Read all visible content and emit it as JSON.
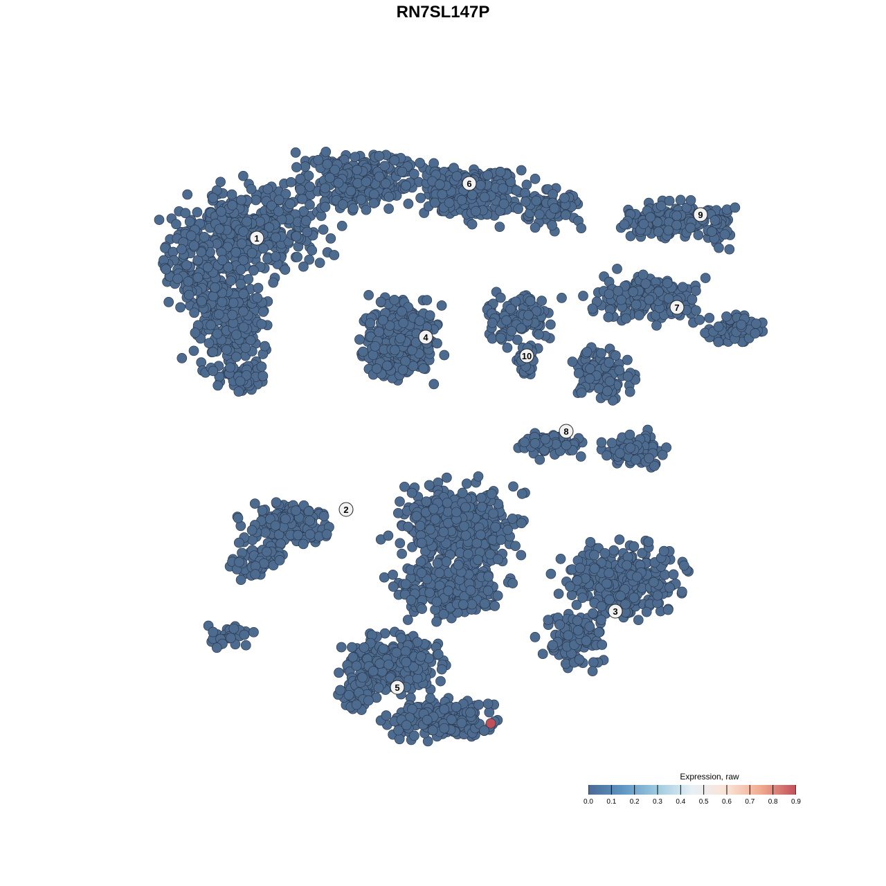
{
  "chart_data": {
    "type": "scatter",
    "title": "RN7SL147P",
    "xlabel": "",
    "ylabel": "",
    "grid": false,
    "axes_visible": false,
    "point_color_default": "#4d6a8f",
    "point_edge_color": "#2b3a4f",
    "clusters": [
      {
        "label": "1",
        "center": [
          -26.9,
          29.6
        ]
      },
      {
        "label": "2",
        "center": [
          -14.0,
          -9.6
        ]
      },
      {
        "label": "3",
        "center": [
          24.9,
          -24.3
        ]
      },
      {
        "label": "4",
        "center": [
          -2.5,
          15.3
        ]
      },
      {
        "label": "5",
        "center": [
          -6.6,
          -35.3
        ]
      },
      {
        "label": "6",
        "center": [
          3.8,
          37.5
        ]
      },
      {
        "label": "7",
        "center": [
          33.8,
          19.6
        ]
      },
      {
        "label": "8",
        "center": [
          17.8,
          1.7
        ]
      },
      {
        "label": "9",
        "center": [
          37.2,
          33.0
        ]
      },
      {
        "label": "10",
        "center": [
          12.1,
          12.6
        ]
      }
    ],
    "highlighted_points": [
      {
        "x": 6.9,
        "y": -40.5,
        "value": 0.9,
        "color": "#c0505a"
      }
    ],
    "all_other_values": 0.0,
    "colorbar": {
      "title": "Expression, raw",
      "range": [
        0.0,
        0.9
      ],
      "ticks": [
        "0.0",
        "0.1",
        "0.2",
        "0.3",
        "0.4",
        "0.5",
        "0.6",
        "0.7",
        "0.8",
        "0.9"
      ],
      "colors": [
        "#4a6a96",
        "#5f96c4",
        "#9fcbe0",
        "#e8f0f5",
        "#fbe3d6",
        "#f0a98f",
        "#c0505a"
      ],
      "position": "bottom-right"
    }
  }
}
